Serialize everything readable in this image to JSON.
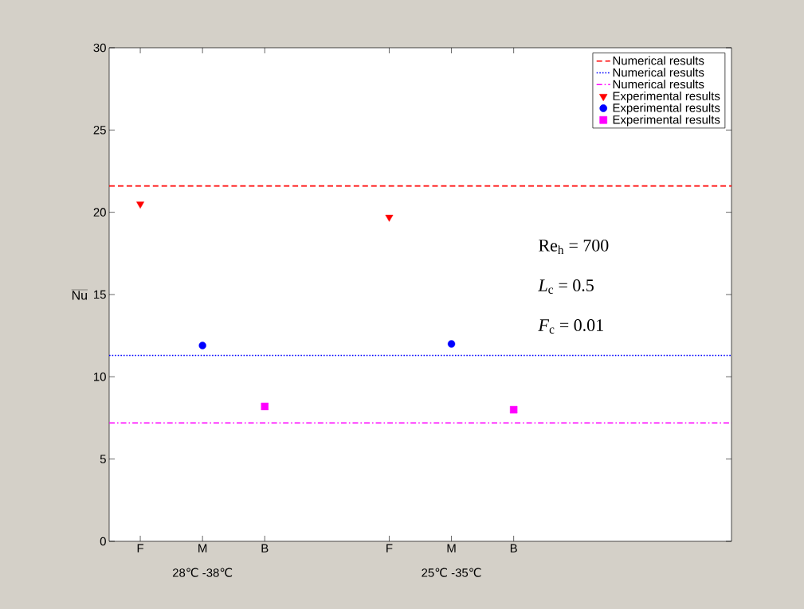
{
  "chart_data": {
    "type": "scatter",
    "ylabel": "\\overline{\\mathrm{Nu}}",
    "categories": [
      "F",
      "M",
      "B",
      null,
      "F",
      "M",
      "B",
      null,
      null,
      null
    ],
    "ylim": [
      0,
      30
    ],
    "yticks": [
      0,
      5,
      10,
      15,
      20,
      25,
      30
    ],
    "legend": "top right",
    "ref_lines": [
      {
        "axis": "y",
        "value": 21.6,
        "label": "Numerical results",
        "color": "#ff0000",
        "line_style": "dashed"
      },
      {
        "axis": "y",
        "value": 11.3,
        "label": "Numerical results",
        "color": "#0000ff",
        "line_style": "dotted"
      },
      {
        "axis": "y",
        "value": 7.2,
        "label": "Numerical results",
        "color": "#ff00ff",
        "line_style": "dashdot"
      }
    ],
    "series": [
      {
        "name": "Experimental results",
        "color": "#ff0000",
        "marker": "triangle",
        "values": [
          20.5,
          null,
          null,
          null,
          19.7,
          null,
          null,
          null,
          null,
          null
        ]
      },
      {
        "name": "Experimental results",
        "color": "#0000ff",
        "marker": "circle",
        "values": [
          null,
          11.9,
          null,
          null,
          null,
          12.0,
          null,
          null,
          null,
          null
        ]
      },
      {
        "name": "Experimental results",
        "color": "#ff00ff",
        "marker": "square",
        "values": [
          null,
          null,
          8.2,
          null,
          null,
          null,
          8.0,
          null,
          null,
          null
        ]
      }
    ],
    "annotations": [
      "28℃ -38℃",
      "25℃ -35℃",
      "Re$_{h}$ = 700",
      "*L*$_{c}$ = 0.5",
      "*F*$_{c}$ = 0.01"
    ]
  }
}
